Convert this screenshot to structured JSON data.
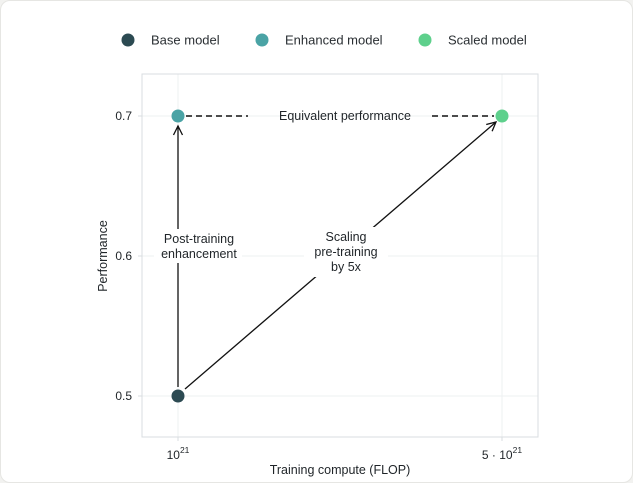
{
  "chart_data": {
    "type": "scatter",
    "xlabel": "Training compute (FLOP)",
    "ylabel": "Performance",
    "x_scale": "log",
    "xlim": [
      1e+21,
      5e+21
    ],
    "ylim": [
      0.5,
      0.7
    ],
    "x_ticks": [
      {
        "value": 1e+21,
        "base": "10",
        "exp": "21"
      },
      {
        "value": 5e+21,
        "base": "5 · 10",
        "exp": "21"
      }
    ],
    "y_ticks": [
      {
        "value": 0.5,
        "label": "0.5"
      },
      {
        "value": 0.6,
        "label": "0.6"
      },
      {
        "value": 0.7,
        "label": "0.7"
      }
    ],
    "grid": true,
    "legend_position": "top-center",
    "series": [
      {
        "name": "Base model",
        "color": "#2c4a52",
        "points": [
          {
            "x": 1e+21,
            "y": 0.5
          }
        ]
      },
      {
        "name": "Enhanced model",
        "color": "#4aa3a5",
        "points": [
          {
            "x": 1e+21,
            "y": 0.7
          }
        ]
      },
      {
        "name": "Scaled model",
        "color": "#5ed08c",
        "points": [
          {
            "x": 5e+21,
            "y": 0.7
          }
        ]
      }
    ],
    "annotations": [
      {
        "name": "equivalent-performance",
        "text": [
          "Equivalent performance"
        ],
        "from": {
          "x": 1e+21,
          "y": 0.7
        },
        "to": {
          "x": 5e+21,
          "y": 0.7
        },
        "style": "dashed"
      },
      {
        "name": "post-training-enhancement",
        "text": [
          "Post-training",
          "enhancement"
        ],
        "from": {
          "x": 1e+21,
          "y": 0.5
        },
        "to": {
          "x": 1e+21,
          "y": 0.7
        },
        "style": "arrow"
      },
      {
        "name": "scaling-pre-training",
        "text": [
          "Scaling",
          "pre-training",
          "by 5x"
        ],
        "from": {
          "x": 1e+21,
          "y": 0.5
        },
        "to": {
          "x": 5e+21,
          "y": 0.7
        },
        "style": "arrow"
      }
    ]
  }
}
